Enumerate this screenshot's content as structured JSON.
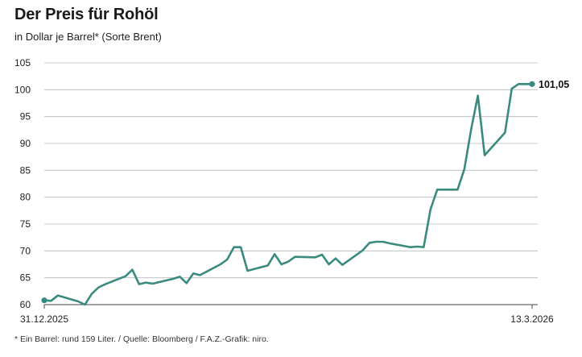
{
  "header": {
    "title": "Der Preis für Rohöl",
    "subtitle": "in Dollar je Barrel* (Sorte Brent)"
  },
  "footnote": "* Ein Barrel: rund 159 Liter.  / Quelle: Bloomberg / F.A.Z.-Grafik: niro.",
  "chart_data": {
    "type": "line",
    "title": "Der Preis für Rohöl",
    "subtitle": "in Dollar je Barrel* (Sorte Brent)",
    "xlabel": "",
    "ylabel": "",
    "ylim": [
      60,
      105
    ],
    "yticks": [
      60,
      65,
      70,
      75,
      80,
      85,
      90,
      95,
      100,
      105
    ],
    "ytick_labels": [
      "60",
      "65",
      "70",
      "75",
      "80",
      "85",
      "90",
      "95",
      "100",
      "105"
    ],
    "xlim": [
      "2025-12-31",
      "2026-03-13"
    ],
    "xtick_labels": [
      "31.12.2025",
      "13.3.2026"
    ],
    "grid": true,
    "line_color": "#3a8a80",
    "series": [
      {
        "x": [
          "2025-12-31",
          "2026-01-01",
          "2026-01-02",
          "2026-01-05",
          "2026-01-06",
          "2026-01-07",
          "2026-01-08",
          "2026-01-09",
          "2026-01-12",
          "2026-01-13",
          "2026-01-14",
          "2026-01-15",
          "2026-01-16",
          "2026-01-19",
          "2026-01-20",
          "2026-01-21",
          "2026-01-22",
          "2026-01-23",
          "2026-01-26",
          "2026-01-27",
          "2026-01-28",
          "2026-01-29",
          "2026-01-30",
          "2026-02-02",
          "2026-02-03",
          "2026-02-04",
          "2026-02-05",
          "2026-02-06",
          "2026-02-09",
          "2026-02-10",
          "2026-02-11",
          "2026-02-12",
          "2026-02-13",
          "2026-02-16",
          "2026-02-17",
          "2026-02-18",
          "2026-02-19",
          "2026-02-20",
          "2026-02-23",
          "2026-02-24",
          "2026-02-25",
          "2026-02-26",
          "2026-02-27",
          "2026-03-02",
          "2026-03-03",
          "2026-03-04",
          "2026-03-05",
          "2026-03-06",
          "2026-03-09",
          "2026-03-10",
          "2026-03-11",
          "2026-03-12",
          "2026-03-13"
        ],
        "values": [
          60.8,
          60.7,
          61.7,
          60.6,
          60.0,
          62.0,
          63.2,
          63.8,
          65.3,
          66.5,
          63.8,
          64.1,
          63.9,
          64.8,
          65.2,
          64.0,
          65.8,
          65.5,
          67.5,
          68.4,
          70.7,
          70.7,
          66.3,
          67.3,
          69.4,
          67.5,
          68.0,
          68.9,
          68.8,
          69.3,
          67.5,
          68.6,
          67.4,
          70.1,
          71.5,
          71.7,
          71.7,
          71.4,
          70.7,
          70.8,
          70.7,
          77.7,
          81.4,
          81.4,
          85.2,
          92.6,
          98.9,
          87.8,
          92.0,
          100.2,
          101.05,
          101.05,
          101.05
        ]
      }
    ],
    "annotations": [
      {
        "label": "101,05",
        "x": "2026-03-13",
        "y": 101.05
      }
    ]
  }
}
